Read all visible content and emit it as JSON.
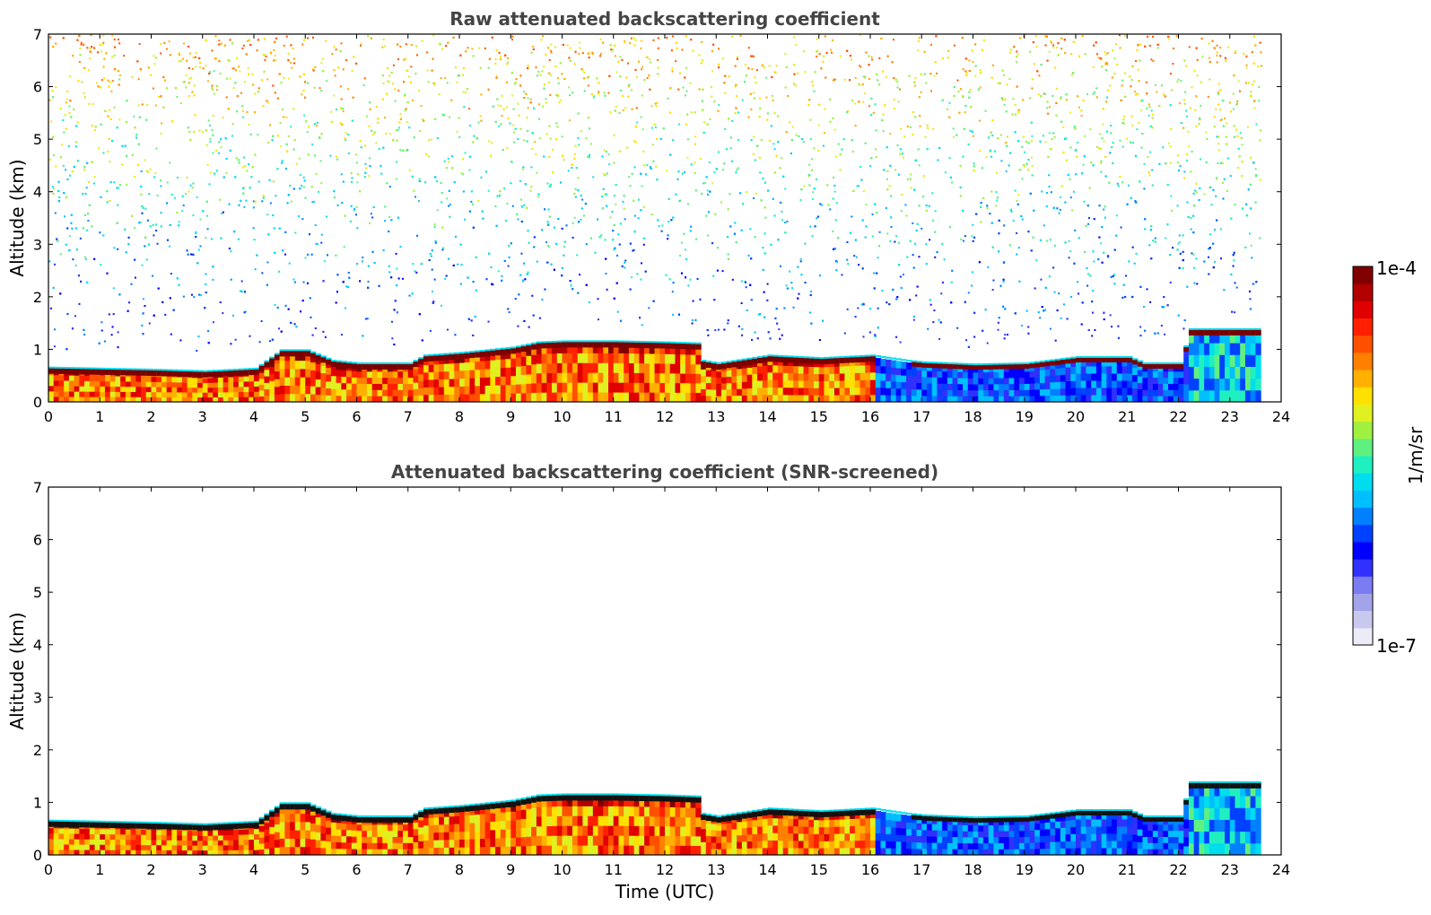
{
  "chart_data": [
    {
      "type": "heatmap",
      "title": "Raw attenuated backscattering coefficient",
      "xlabel": "",
      "ylabel": "Altitude (km)",
      "xlim": [
        0,
        24
      ],
      "ylim": [
        0,
        7
      ],
      "x_ticks": [
        "0",
        "1",
        "2",
        "3",
        "4",
        "5",
        "6",
        "7",
        "8",
        "9",
        "10",
        "11",
        "12",
        "13",
        "14",
        "15",
        "16",
        "17",
        "18",
        "19",
        "20",
        "21",
        "22",
        "23",
        "24"
      ],
      "y_ticks": [
        "0",
        "1",
        "2",
        "3",
        "4",
        "5",
        "6",
        "7"
      ],
      "data_end_hour": 23.6,
      "boundary_layer_top_km": [
        [
          0,
          0.62
        ],
        [
          1,
          0.6
        ],
        [
          2,
          0.58
        ],
        [
          3,
          0.55
        ],
        [
          4,
          0.6
        ],
        [
          4.5,
          0.95
        ],
        [
          5,
          0.95
        ],
        [
          5.5,
          0.75
        ],
        [
          6,
          0.7
        ],
        [
          7,
          0.7
        ],
        [
          7.3,
          0.85
        ],
        [
          8,
          0.9
        ],
        [
          9,
          1.0
        ],
        [
          9.5,
          1.1
        ],
        [
          10,
          1.12
        ],
        [
          11,
          1.12
        ],
        [
          12,
          1.1
        ],
        [
          12.6,
          1.08
        ],
        [
          12.7,
          0.75
        ],
        [
          13,
          0.7
        ],
        [
          14,
          0.85
        ],
        [
          15,
          0.8
        ],
        [
          16,
          0.85
        ],
        [
          16.7,
          0.75
        ],
        [
          17,
          0.72
        ],
        [
          18,
          0.68
        ],
        [
          19,
          0.7
        ],
        [
          20,
          0.82
        ],
        [
          21,
          0.82
        ],
        [
          21.3,
          0.7
        ],
        [
          22,
          0.7
        ],
        [
          22.2,
          1.35
        ],
        [
          23.6,
          1.35
        ]
      ],
      "regime_by_time": [
        {
          "from": 0,
          "to": 16,
          "colorscale_level": "high"
        },
        {
          "from": 16,
          "to": 22.2,
          "colorscale_level": "low"
        },
        {
          "from": 22.2,
          "to": 23.6,
          "colorscale_level": "mid"
        }
      ],
      "noise_above_layer": true
    },
    {
      "type": "heatmap",
      "title": "Attenuated backscattering coefficient (SNR-screened)",
      "xlabel": "Time (UTC)",
      "ylabel": "Altitude (km)",
      "xlim": [
        0,
        24
      ],
      "ylim": [
        0,
        7
      ],
      "x_ticks": [
        "0",
        "1",
        "2",
        "3",
        "4",
        "5",
        "6",
        "7",
        "8",
        "9",
        "10",
        "11",
        "12",
        "13",
        "14",
        "15",
        "16",
        "17",
        "18",
        "19",
        "20",
        "21",
        "22",
        "23",
        "24"
      ],
      "y_ticks": [
        "0",
        "1",
        "2",
        "3",
        "4",
        "5",
        "6",
        "7"
      ],
      "data_end_hour": 23.6,
      "noise_above_layer": false
    }
  ],
  "colorbar": {
    "max_label": "1e-4",
    "min_label": "1e-7",
    "unit_label": "1/m/sr",
    "colors": [
      "#ececf8",
      "#c9c9f0",
      "#a3a3ea",
      "#7b7bf2",
      "#3030ff",
      "#0000ff",
      "#0040ff",
      "#0080ff",
      "#00bfff",
      "#00ddee",
      "#20f0c0",
      "#60f080",
      "#a0f040",
      "#e0f020",
      "#ffe000",
      "#ffb000",
      "#ff8000",
      "#ff5000",
      "#ff2000",
      "#e00000",
      "#b00000",
      "#800000"
    ]
  }
}
